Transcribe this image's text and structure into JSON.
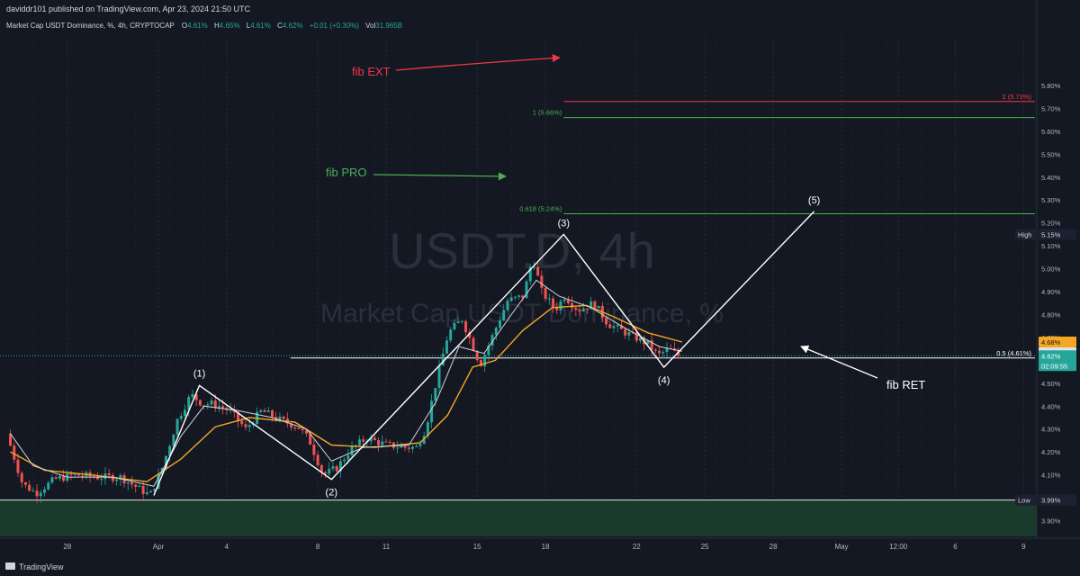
{
  "header": {
    "published": "daviddr101 published on TradingView.com, Apr 23, 2024 21:50 UTC",
    "symbol": "Market Cap USDT Dominance, %, 4h, CRYPTOCAP",
    "ohlc": [
      {
        "k": "O",
        "v": "4.61%"
      },
      {
        "k": "H",
        "v": "4.65%"
      },
      {
        "k": "L",
        "v": "4.61%"
      },
      {
        "k": "C",
        "v": "4.62%"
      }
    ],
    "change": "+0.01 (+0.30%)",
    "vol_label": "Vol",
    "vol_value": "31.965B"
  },
  "watermark": {
    "line1": "USDT.D, 4h",
    "line2": "Market Cap USDT Dominance, %"
  },
  "footer": {
    "brand": "TradingView"
  },
  "colors": {
    "background": "#141823",
    "up": "#26a69a",
    "down": "#ef5350",
    "ema_orange": "#f5a623",
    "fib_ext": "#f23645",
    "fib_green": "#4caf50",
    "wave": "#ffffff"
  },
  "annotations": {
    "fib_ext": "fib EXT",
    "fib_pro": "fib PRO",
    "fib_ret": "fib RET",
    "waves": [
      "(1)",
      "(2)",
      "(3)",
      "(4)",
      "(5)"
    ]
  },
  "price_labels": {
    "high_label": "High",
    "high_value": "5.15%",
    "low_label": "Low",
    "low_value": "3.99%",
    "ema_a": "4.68%",
    "ema_b": "4.64%",
    "current": "4.62%",
    "countdown": "02:09:55"
  },
  "chart_data": {
    "type": "candlestick",
    "y_ticks": [
      "3.90%",
      "4.00%",
      "4.10%",
      "4.20%",
      "4.30%",
      "4.40%",
      "4.50%",
      "4.60%",
      "4.70%",
      "4.80%",
      "4.90%",
      "5.00%",
      "5.10%",
      "5.20%",
      "5.30%",
      "5.40%",
      "5.50%",
      "5.60%",
      "5.70%",
      "5.80%"
    ],
    "ylim": [
      3.87,
      5.83
    ],
    "x_labels": [
      {
        "t": "28",
        "day": -3
      },
      {
        "t": "Apr",
        "day": 1
      },
      {
        "t": "4",
        "day": 4
      },
      {
        "t": "8",
        "day": 8
      },
      {
        "t": "11",
        "day": 11
      },
      {
        "t": "15",
        "day": 15
      },
      {
        "t": "18",
        "day": 18
      },
      {
        "t": "22",
        "day": 22
      },
      {
        "t": "25",
        "day": 25
      },
      {
        "t": "28",
        "day": 28
      },
      {
        "t": "May",
        "day": 31
      },
      {
        "t": "12:00",
        "day": 33.5
      },
      {
        "t": "6",
        "day": 36
      },
      {
        "t": "9",
        "day": 39
      }
    ],
    "price_path": [
      {
        "day": -5.5,
        "p": 4.28
      },
      {
        "day": -4.8,
        "p": 4.06
      },
      {
        "day": -4.2,
        "p": 4.02
      },
      {
        "day": -3.4,
        "p": 4.08
      },
      {
        "day": -2.5,
        "p": 4.1
      },
      {
        "day": -1.5,
        "p": 4.09
      },
      {
        "day": -0.5,
        "p": 4.09
      },
      {
        "day": 0.3,
        "p": 4.04
      },
      {
        "day": 0.8,
        "p": 4.01
      },
      {
        "day": 1.3,
        "p": 4.12
      },
      {
        "day": 2.0,
        "p": 4.34
      },
      {
        "day": 2.6,
        "p": 4.45
      },
      {
        "day": 3.1,
        "p": 4.41
      },
      {
        "day": 3.6,
        "p": 4.41
      },
      {
        "day": 4.3,
        "p": 4.38
      },
      {
        "day": 5.0,
        "p": 4.3
      },
      {
        "day": 5.7,
        "p": 4.38
      },
      {
        "day": 6.5,
        "p": 4.34
      },
      {
        "day": 7.3,
        "p": 4.31
      },
      {
        "day": 7.8,
        "p": 4.25
      },
      {
        "day": 8.4,
        "p": 4.1
      },
      {
        "day": 9.0,
        "p": 4.13
      },
      {
        "day": 9.6,
        "p": 4.21
      },
      {
        "day": 10.3,
        "p": 4.26
      },
      {
        "day": 11.2,
        "p": 4.23
      },
      {
        "day": 12.0,
        "p": 4.22
      },
      {
        "day": 12.5,
        "p": 4.22
      },
      {
        "day": 12.9,
        "p": 4.3
      },
      {
        "day": 13.4,
        "p": 4.52
      },
      {
        "day": 13.9,
        "p": 4.72
      },
      {
        "day": 14.5,
        "p": 4.78
      },
      {
        "day": 15.3,
        "p": 4.58
      },
      {
        "day": 15.9,
        "p": 4.72
      },
      {
        "day": 16.5,
        "p": 4.86
      },
      {
        "day": 17.2,
        "p": 4.88
      },
      {
        "day": 17.6,
        "p": 5.05
      },
      {
        "day": 18.0,
        "p": 4.9
      },
      {
        "day": 18.6,
        "p": 4.82
      },
      {
        "day": 19.0,
        "p": 4.88
      },
      {
        "day": 19.6,
        "p": 4.82
      },
      {
        "day": 20.3,
        "p": 4.85
      },
      {
        "day": 20.9,
        "p": 4.76
      },
      {
        "day": 21.5,
        "p": 4.73
      },
      {
        "day": 22.1,
        "p": 4.7
      },
      {
        "day": 22.7,
        "p": 4.67
      },
      {
        "day": 23.1,
        "p": 4.62
      },
      {
        "day": 23.6,
        "p": 4.65
      },
      {
        "day": 24.0,
        "p": 4.62
      }
    ],
    "ema_fast": [
      {
        "day": -5.5,
        "p": 4.28
      },
      {
        "day": -4.5,
        "p": 4.14
      },
      {
        "day": -3.0,
        "p": 4.09
      },
      {
        "day": -1.0,
        "p": 4.09
      },
      {
        "day": 0.8,
        "p": 4.05
      },
      {
        "day": 2.0,
        "p": 4.27
      },
      {
        "day": 3.0,
        "p": 4.4
      },
      {
        "day": 4.5,
        "p": 4.38
      },
      {
        "day": 6.0,
        "p": 4.35
      },
      {
        "day": 7.5,
        "p": 4.3
      },
      {
        "day": 8.6,
        "p": 4.16
      },
      {
        "day": 10.0,
        "p": 4.22
      },
      {
        "day": 12.0,
        "p": 4.23
      },
      {
        "day": 13.2,
        "p": 4.42
      },
      {
        "day": 14.2,
        "p": 4.66
      },
      {
        "day": 15.3,
        "p": 4.63
      },
      {
        "day": 16.5,
        "p": 4.8
      },
      {
        "day": 17.6,
        "p": 4.95
      },
      {
        "day": 18.6,
        "p": 4.88
      },
      {
        "day": 20.0,
        "p": 4.83
      },
      {
        "day": 21.5,
        "p": 4.74
      },
      {
        "day": 23.0,
        "p": 4.66
      },
      {
        "day": 24.0,
        "p": 4.64
      }
    ],
    "ema_slow": [
      {
        "day": -5.5,
        "p": 4.2
      },
      {
        "day": -4.0,
        "p": 4.12
      },
      {
        "day": -2.0,
        "p": 4.1
      },
      {
        "day": 0.5,
        "p": 4.07
      },
      {
        "day": 2.0,
        "p": 4.17
      },
      {
        "day": 3.5,
        "p": 4.31
      },
      {
        "day": 5.0,
        "p": 4.35
      },
      {
        "day": 7.0,
        "p": 4.33
      },
      {
        "day": 8.6,
        "p": 4.23
      },
      {
        "day": 10.5,
        "p": 4.22
      },
      {
        "day": 12.5,
        "p": 4.24
      },
      {
        "day": 13.7,
        "p": 4.36
      },
      {
        "day": 14.8,
        "p": 4.57
      },
      {
        "day": 15.8,
        "p": 4.6
      },
      {
        "day": 17.0,
        "p": 4.73
      },
      {
        "day": 18.3,
        "p": 4.83
      },
      {
        "day": 19.8,
        "p": 4.84
      },
      {
        "day": 21.0,
        "p": 4.79
      },
      {
        "day": 22.5,
        "p": 4.72
      },
      {
        "day": 24.0,
        "p": 4.68
      }
    ],
    "fib_levels": [
      {
        "label": "2 (5.73%)",
        "value": 5.73,
        "day_start": 18.8,
        "color": "#f23645"
      },
      {
        "label": "1 (5.66%)",
        "value": 5.66,
        "day_start": 18.8,
        "color": "#4caf50"
      },
      {
        "label": "0.618 (5.24%)",
        "value": 5.24,
        "day_start": 18.8,
        "color": "#4caf50"
      },
      {
        "label": "0.5 (4.61%)",
        "value": 4.61,
        "day_start": 6.8,
        "color": "#ffffff"
      }
    ],
    "wave_points": [
      {
        "day": 0.8,
        "p": 4.01
      },
      {
        "day": 2.8,
        "p": 4.49
      },
      {
        "day": 8.6,
        "p": 4.08
      },
      {
        "day": 18.8,
        "p": 5.15
      },
      {
        "day": 23.2,
        "p": 4.57
      },
      {
        "day": 29.8,
        "p": 5.25
      }
    ],
    "high_value": 5.15,
    "low_value": 3.99,
    "current_value": 4.62
  }
}
